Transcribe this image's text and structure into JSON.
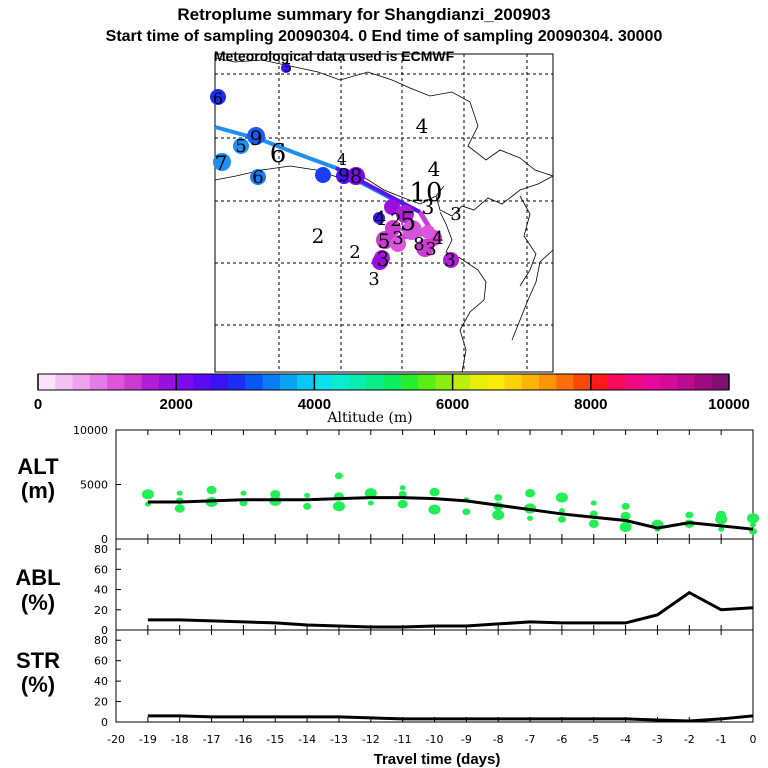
{
  "header": {
    "title": "Retroplume summary for Shangdianzi_200903",
    "subtitle": "Start time of sampling 20090304.    0     End time of sampling 20090304. 30000",
    "met_line": "Meteorological data used is ECMWF"
  },
  "colorbar": {
    "label": "Altitude  (m)",
    "ticks": [
      "0",
      "2000",
      "4000",
      "6000",
      "8000",
      "10000"
    ],
    "range": [
      0,
      10000
    ],
    "colors": [
      "#fbe3fb",
      "#f4c2f4",
      "#eea3ee",
      "#e57ce5",
      "#dd55dd",
      "#c93ccf",
      "#b01ed5",
      "#9a0fe0",
      "#7a0af0",
      "#5a0af5",
      "#3a12f5",
      "#1a2ef5",
      "#0a55f5",
      "#0a7cf5",
      "#0aa3f5",
      "#0ac8f5",
      "#0ae0f0",
      "#0aecd2",
      "#0aedb0",
      "#0aee8a",
      "#0aee60",
      "#28ee2e",
      "#58ee1a",
      "#8aee12",
      "#bcee0e",
      "#e6ee0a",
      "#fcea0a",
      "#fcd20a",
      "#fcb40a",
      "#fc940a",
      "#fc700a",
      "#fc460a",
      "#fc1a1a",
      "#fa0a5a",
      "#f00a82",
      "#e60a9a",
      "#d40a98",
      "#be0a90",
      "#a00a80",
      "#801070"
    ]
  },
  "map": {
    "trajectory_labels": [
      {
        "text": "5",
        "size": 12
      },
      {
        "text": "6",
        "size": 16
      },
      {
        "text": "9",
        "size": 20
      },
      {
        "text": "5",
        "size": 18
      },
      {
        "text": "6",
        "size": 26
      },
      {
        "text": "7",
        "size": 20
      },
      {
        "text": "6",
        "size": 18
      },
      {
        "text": "4",
        "size": 20
      },
      {
        "text": "4",
        "size": 20
      },
      {
        "text": "9",
        "size": 18
      },
      {
        "text": "8",
        "size": 20
      },
      {
        "text": "4",
        "size": 16
      },
      {
        "text": "4",
        "size": 20
      },
      {
        "text": "10",
        "size": 26
      },
      {
        "text": "3",
        "size": 18
      },
      {
        "text": "4",
        "size": 18
      },
      {
        "text": "5",
        "size": 26
      },
      {
        "text": "2",
        "size": 20
      },
      {
        "text": "2",
        "size": 18
      },
      {
        "text": "5",
        "size": 20
      },
      {
        "text": "3",
        "size": 18
      },
      {
        "text": "3",
        "size": 18
      },
      {
        "text": "3",
        "size": 20
      },
      {
        "text": "3",
        "size": 18
      },
      {
        "text": "2",
        "size": 18
      },
      {
        "text": "8",
        "size": 18
      },
      {
        "text": "3",
        "size": 18
      },
      {
        "text": "3",
        "size": 20
      }
    ]
  },
  "chart_data": [
    {
      "type": "line",
      "label": "ALT",
      "unit": "(m)",
      "xlabel": "Travel time (days)",
      "x": [
        -19,
        -18,
        -17,
        -16,
        -15,
        -14,
        -13,
        -12,
        -11,
        -10,
        -9,
        -8,
        -7,
        -6,
        -5,
        -4,
        -3,
        -2,
        -1,
        0
      ],
      "values": [
        3400,
        3400,
        3500,
        3600,
        3600,
        3600,
        3700,
        3800,
        3800,
        3700,
        3500,
        3100,
        2700,
        2300,
        2000,
        1700,
        1000,
        1500,
        1200,
        900
      ],
      "ylim": [
        0,
        10000
      ],
      "yticks": [
        "10000",
        "5000",
        "0"
      ],
      "scatter": [
        [
          -19,
          3200
        ],
        [
          -19,
          4100
        ],
        [
          -18,
          2800
        ],
        [
          -18,
          3500
        ],
        [
          -18,
          4200
        ],
        [
          -17,
          3400
        ],
        [
          -17,
          4500
        ],
        [
          -16,
          3300
        ],
        [
          -16,
          4200
        ],
        [
          -15,
          3500
        ],
        [
          -15,
          4100
        ],
        [
          -14,
          3000
        ],
        [
          -14,
          4000
        ],
        [
          -13,
          3000
        ],
        [
          -13,
          3900
        ],
        [
          -13,
          5800
        ],
        [
          -12,
          3300
        ],
        [
          -12,
          4200
        ],
        [
          -11,
          3200
        ],
        [
          -11,
          4100
        ],
        [
          -11,
          4700
        ],
        [
          -10,
          2700
        ],
        [
          -10,
          4300
        ],
        [
          -9,
          2500
        ],
        [
          -9,
          3600
        ],
        [
          -8,
          2200
        ],
        [
          -8,
          3000
        ],
        [
          -8,
          3800
        ],
        [
          -7,
          1900
        ],
        [
          -7,
          2800
        ],
        [
          -7,
          4200
        ],
        [
          -6,
          1800
        ],
        [
          -6,
          2600
        ],
        [
          -6,
          3800
        ],
        [
          -5,
          1400
        ],
        [
          -5,
          2300
        ],
        [
          -5,
          3300
        ],
        [
          -4,
          1100
        ],
        [
          -4,
          2100
        ],
        [
          -4,
          3000
        ],
        [
          -3,
          900
        ],
        [
          -3,
          1300
        ],
        [
          -2,
          1400
        ],
        [
          -2,
          2200
        ],
        [
          -1,
          900
        ],
        [
          -1,
          1800
        ],
        [
          -1,
          2200
        ],
        [
          0,
          700
        ],
        [
          0,
          1300
        ],
        [
          0,
          1900
        ]
      ]
    },
    {
      "type": "line",
      "label": "ABL",
      "unit": "(%)",
      "x": [
        -19,
        -18,
        -17,
        -16,
        -15,
        -14,
        -13,
        -12,
        -11,
        -10,
        -9,
        -8,
        -7,
        -6,
        -5,
        -4,
        -3,
        -2,
        -1,
        0
      ],
      "values": [
        10,
        10,
        9,
        8,
        7,
        5,
        4,
        3,
        3,
        4,
        4,
        6,
        8,
        7,
        7,
        7,
        15,
        37,
        20,
        22
      ],
      "ylim": [
        0,
        90
      ],
      "yticks": [
        "80",
        "60",
        "40",
        "20",
        "0"
      ]
    },
    {
      "type": "line",
      "label": "STR",
      "unit": "(%)",
      "x": [
        -19,
        -18,
        -17,
        -16,
        -15,
        -14,
        -13,
        -12,
        -11,
        -10,
        -9,
        -8,
        -7,
        -6,
        -5,
        -4,
        -3,
        -2,
        -1,
        0
      ],
      "values": [
        6,
        6,
        5,
        5,
        5,
        5,
        5,
        4,
        3,
        3,
        3,
        3,
        3,
        3,
        3,
        3,
        2,
        1,
        3,
        6
      ],
      "ylim": [
        0,
        90
      ],
      "yticks": [
        "80",
        "60",
        "40",
        "20",
        "0"
      ]
    }
  ],
  "xaxis": {
    "ticks": [
      "-20",
      "-19",
      "-18",
      "-17",
      "-16",
      "-15",
      "-14",
      "-13",
      "-12",
      "-11",
      "-10",
      "-9",
      "-8",
      "-7",
      "-6",
      "-5",
      "-4",
      "-3",
      "-2",
      "-1",
      "0"
    ],
    "range": [
      -20,
      0
    ]
  },
  "colors": {
    "green": "#22ee55",
    "black": "#000000"
  }
}
